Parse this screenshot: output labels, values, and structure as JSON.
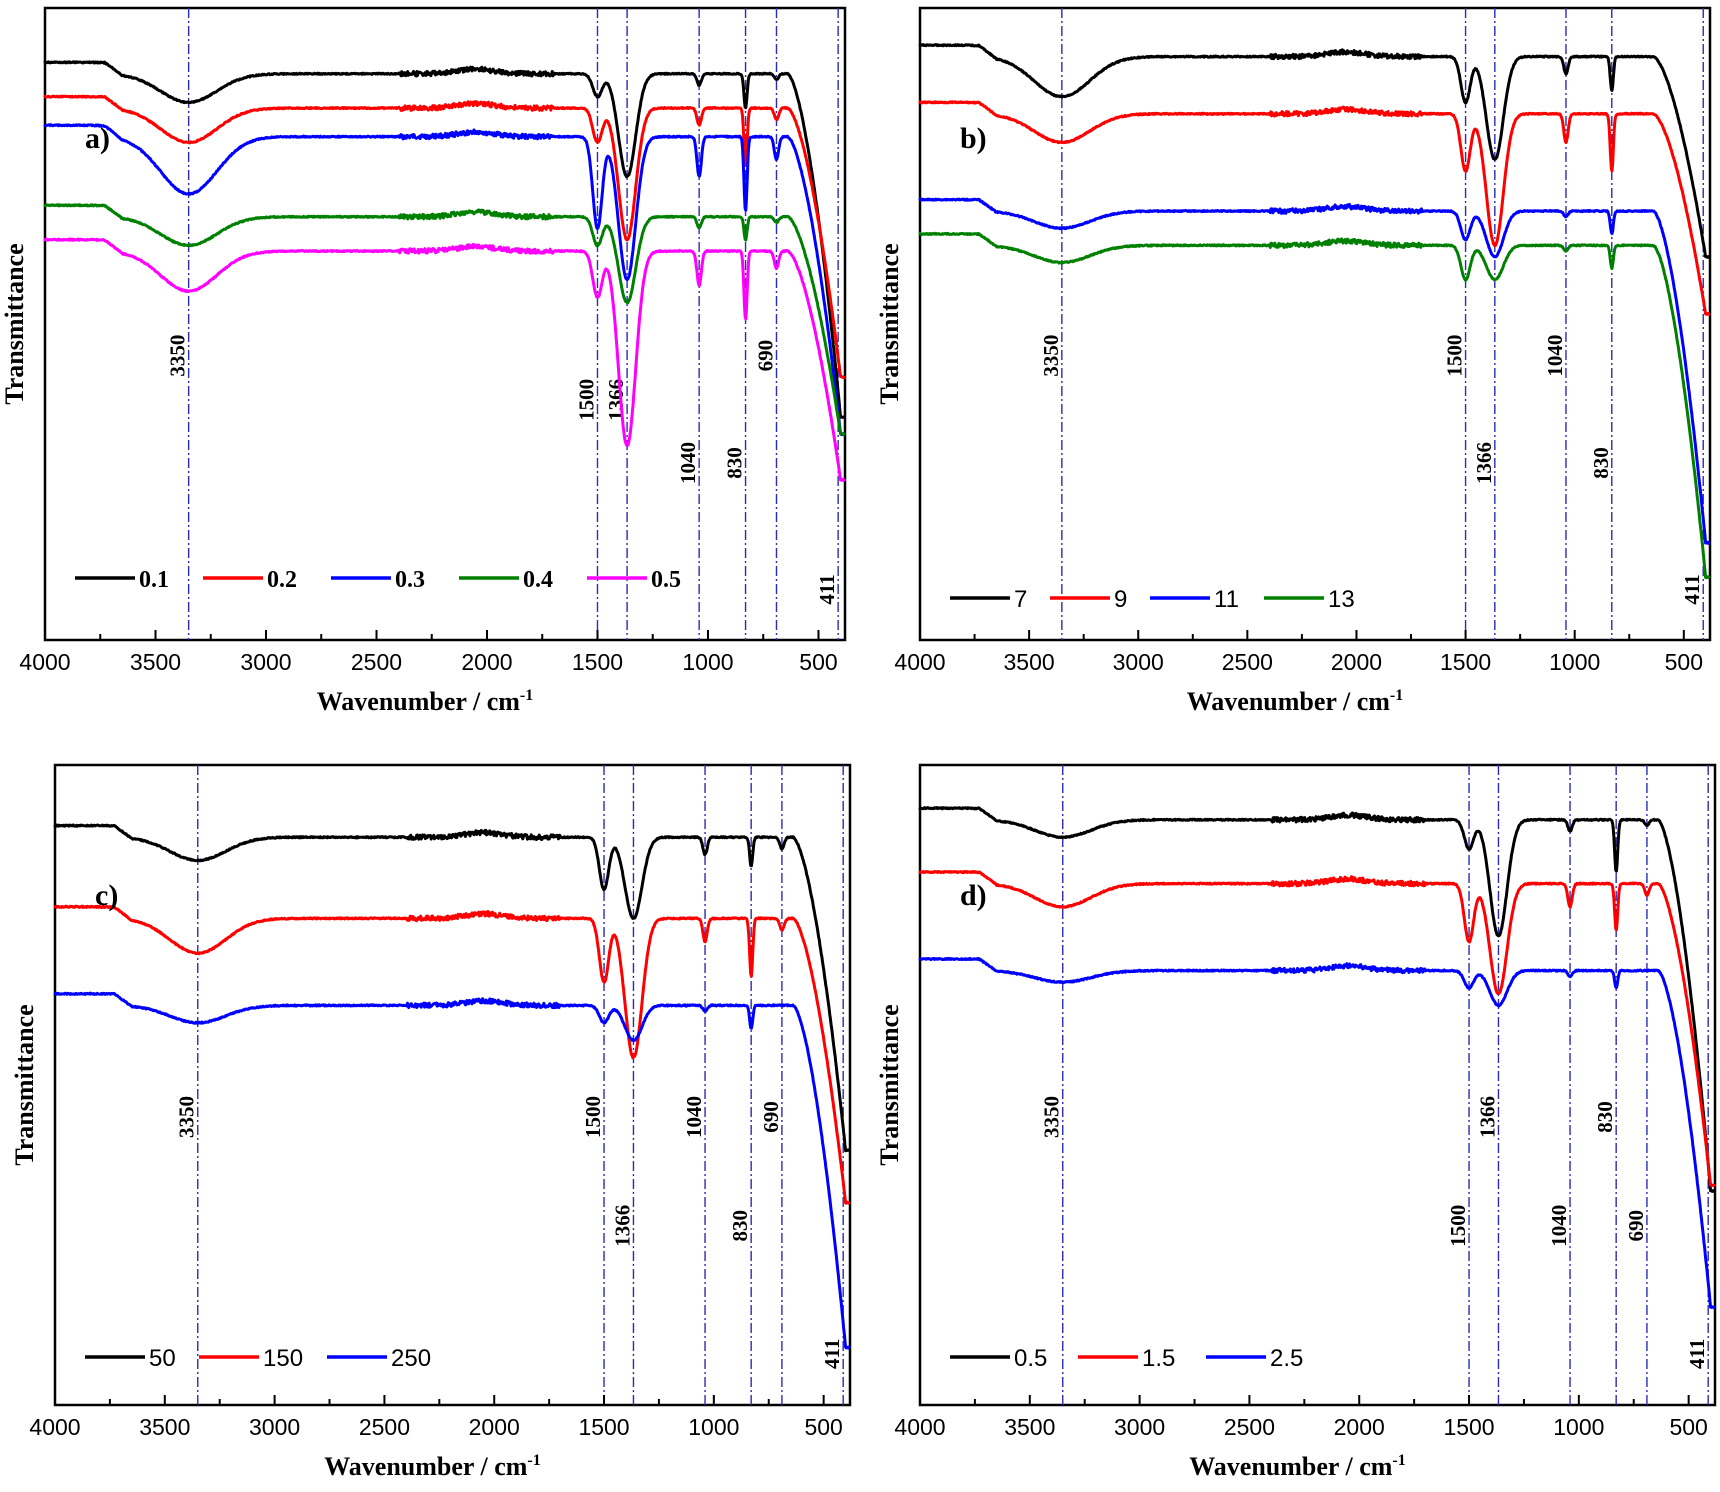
{
  "chart_data": [
    {
      "panel": "a)",
      "type": "line",
      "xlabel": "Wavenumber / cm",
      "xlabel_sup": "-1",
      "ylabel": "Transmittance",
      "xlim": [
        4000,
        380
      ],
      "xticks": [
        4000,
        3500,
        3000,
        2500,
        2000,
        1500,
        1000,
        500
      ],
      "reference_lines": [
        3350,
        1500,
        1366,
        1040,
        830,
        690,
        411
      ],
      "legend_style": "bold",
      "series": [
        {
          "name": "0.1",
          "color": "#000000",
          "base": 0.08,
          "peaks": {
            "3350": 0.05,
            "1500": 0.04,
            "1366": 0.18,
            "1040": 0.02,
            "830": 0.06,
            "690": 0.01
          },
          "edge": 0.6
        },
        {
          "name": "0.2",
          "color": "#ff0000",
          "base": 0.14,
          "peaks": {
            "3350": 0.06,
            "1500": 0.06,
            "1366": 0.23,
            "1040": 0.03,
            "830": 0.1,
            "690": 0.02
          },
          "edge": 0.47
        },
        {
          "name": "0.3",
          "color": "#0000ff",
          "base": 0.19,
          "peaks": {
            "3350": 0.1,
            "1500": 0.16,
            "1366": 0.25,
            "1040": 0.07,
            "830": 0.13,
            "690": 0.04
          },
          "edge": 0.52
        },
        {
          "name": "0.4",
          "color": "#008000",
          "base": 0.33,
          "peaks": {
            "3350": 0.05,
            "1500": 0.05,
            "1366": 0.15,
            "1040": 0.02,
            "830": 0.04,
            "690": 0.01
          },
          "edge": 0.38
        },
        {
          "name": "0.5",
          "color": "#ff00ff",
          "base": 0.39,
          "peaks": {
            "3350": 0.07,
            "1500": 0.08,
            "1366": 0.34,
            "1040": 0.06,
            "830": 0.12,
            "690": 0.03
          },
          "edge": 0.4
        }
      ],
      "ref_label_positions": [
        "mid",
        "low",
        "low",
        "lower",
        "lower",
        "mid",
        "bottom"
      ]
    },
    {
      "panel": "b)",
      "type": "line",
      "xlabel": "Wavenumber / cm",
      "xlabel_sup": "-1",
      "ylabel": "Transmittance",
      "xlim": [
        4000,
        380
      ],
      "xticks": [
        4000,
        3500,
        3000,
        2500,
        2000,
        1500,
        1000,
        500
      ],
      "reference_lines": [
        3350,
        1500,
        1366,
        1040,
        830,
        411
      ],
      "legend_style": "plain",
      "series": [
        {
          "name": "7",
          "color": "#000000",
          "base": 0.05,
          "peaks": {
            "3350": 0.07,
            "1500": 0.08,
            "1366": 0.18,
            "1040": 0.03,
            "830": 0.06
          },
          "edge": 0.35
        },
        {
          "name": "9",
          "color": "#ff0000",
          "base": 0.15,
          "peaks": {
            "3350": 0.05,
            "1500": 0.1,
            "1366": 0.23,
            "1040": 0.05,
            "830": 0.1
          },
          "edge": 0.35
        },
        {
          "name": "11",
          "color": "#0000ff",
          "base": 0.32,
          "peaks": {
            "3350": 0.03,
            "1500": 0.05,
            "1366": 0.08,
            "1040": 0.01,
            "830": 0.04
          },
          "edge": 0.58
        },
        {
          "name": "13",
          "color": "#008000",
          "base": 0.38,
          "peaks": {
            "3350": 0.03,
            "1500": 0.06,
            "1366": 0.06,
            "1040": 0.01,
            "830": 0.04
          },
          "edge": 0.58
        }
      ],
      "ref_label_positions": [
        "mid",
        "mid",
        "lower",
        "mid",
        "lower",
        "bottom"
      ]
    },
    {
      "panel": "c)",
      "type": "line",
      "xlabel": "Wavenumber / cm",
      "xlabel_sup": "-1",
      "ylabel": "Transmittance",
      "xlim": [
        4000,
        380
      ],
      "xticks": [
        4000,
        3500,
        3000,
        2500,
        2000,
        1500,
        1000,
        500
      ],
      "reference_lines": [
        3350,
        1500,
        1366,
        1040,
        830,
        690,
        411
      ],
      "legend_style": "plain",
      "series": [
        {
          "name": "50",
          "color": "#000000",
          "base": 0.09,
          "peaks": {
            "3350": 0.04,
            "1500": 0.09,
            "1366": 0.14,
            "1040": 0.03,
            "830": 0.05,
            "690": 0.02
          },
          "edge": 0.54
        },
        {
          "name": "150",
          "color": "#ff0000",
          "base": 0.23,
          "peaks": {
            "3350": 0.06,
            "1500": 0.11,
            "1366": 0.24,
            "1040": 0.04,
            "830": 0.1,
            "690": 0.02
          },
          "edge": 0.49
        },
        {
          "name": "250",
          "color": "#0000ff",
          "base": 0.38,
          "peaks": {
            "3350": 0.03,
            "1500": 0.03,
            "1366": 0.06,
            "1040": 0.01,
            "830": 0.04
          },
          "edge": 0.59
        }
      ],
      "ref_label_positions": [
        "mid",
        "mid",
        "lower",
        "mid",
        "lower",
        "mid",
        "bottom"
      ]
    },
    {
      "panel": "d)",
      "type": "line",
      "xlabel": "Wavenumber / cm",
      "xlabel_sup": "-1",
      "ylabel": "Transmittance",
      "xlim": [
        4000,
        380
      ],
      "xticks": [
        4000,
        3500,
        3000,
        2500,
        2000,
        1500,
        1000,
        500
      ],
      "reference_lines": [
        3350,
        1500,
        1366,
        1040,
        830,
        690,
        411
      ],
      "legend_style": "plain",
      "series": [
        {
          "name": "0.5",
          "color": "#000000",
          "base": 0.06,
          "peaks": {
            "3350": 0.03,
            "1500": 0.05,
            "1366": 0.2,
            "1040": 0.02,
            "830": 0.09,
            "690": 0.01
          },
          "edge": 0.64
        },
        {
          "name": "1.5",
          "color": "#ff0000",
          "base": 0.17,
          "peaks": {
            "3350": 0.04,
            "1500": 0.1,
            "1366": 0.19,
            "1040": 0.04,
            "830": 0.08,
            "690": 0.02
          },
          "edge": 0.52
        },
        {
          "name": "2.5",
          "color": "#0000ff",
          "base": 0.32,
          "peaks": {
            "3350": 0.02,
            "1500": 0.03,
            "1366": 0.06,
            "1040": 0.01,
            "830": 0.03
          },
          "edge": 0.58
        }
      ],
      "ref_label_positions": [
        "mid",
        "lower",
        "mid",
        "lower",
        "mid",
        "lower",
        "bottom"
      ]
    }
  ]
}
